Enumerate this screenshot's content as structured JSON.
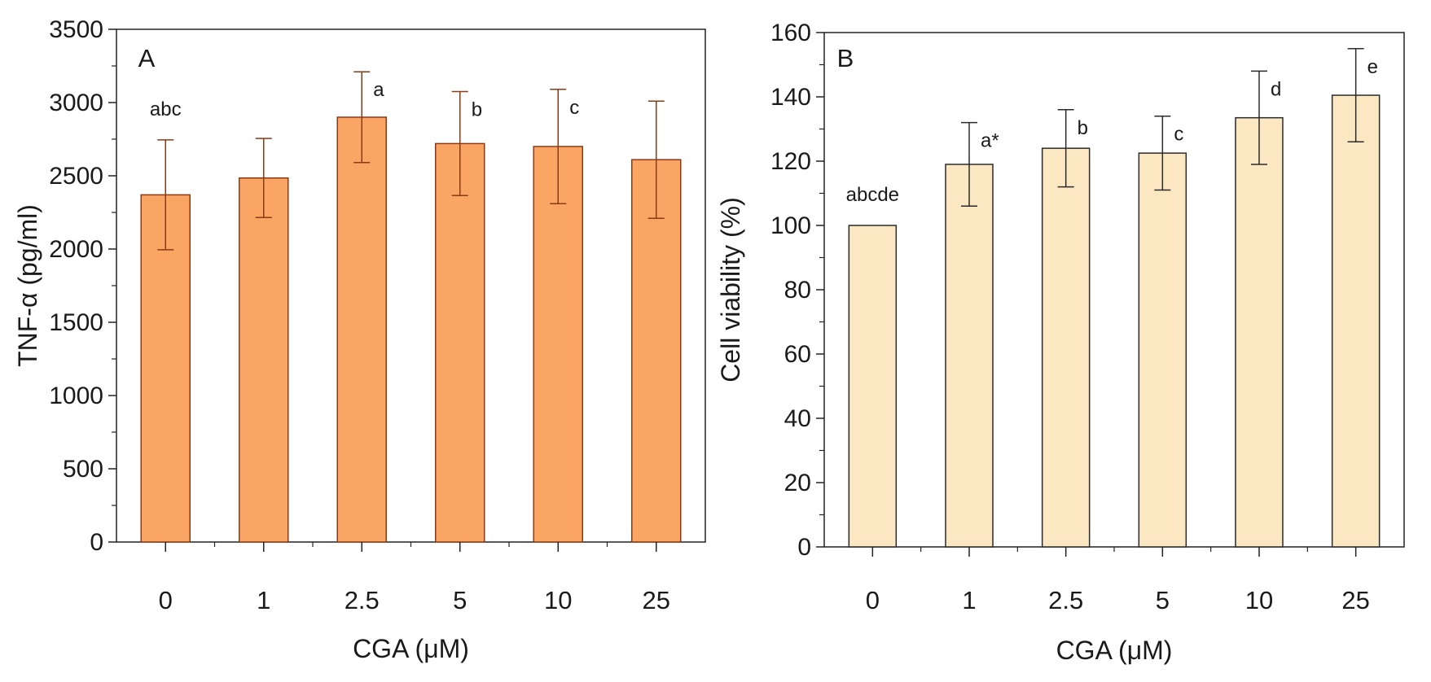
{
  "chart_data": [
    {
      "type": "bar",
      "panel": "A",
      "categories": [
        "0",
        "1",
        "2.5",
        "5",
        "10",
        "25"
      ],
      "values": [
        2370,
        2485,
        2900,
        2720,
        2700,
        2610
      ],
      "errors": [
        375,
        270,
        310,
        355,
        390,
        400
      ],
      "annotations": [
        "abc",
        "",
        "a",
        "b",
        "c",
        ""
      ],
      "xlabel": "CGA (μM)",
      "ylabel": "TNF-α (pg/ml)",
      "ylim": [
        0,
        3500
      ],
      "yticks": [
        0,
        500,
        1000,
        1500,
        2000,
        2500,
        3000,
        3500
      ],
      "bar_color": "#fba564",
      "edge_color": "#8a3a14",
      "error_color": "#8a3a14"
    },
    {
      "type": "bar",
      "panel": "B",
      "categories": [
        "0",
        "1",
        "2.5",
        "5",
        "10",
        "25"
      ],
      "values": [
        100,
        119,
        124,
        122.5,
        133.5,
        140.5
      ],
      "errors": [
        0,
        13,
        12,
        11.5,
        14.5,
        14.5
      ],
      "annotations": [
        "abcde",
        "a*",
        "b",
        "c",
        "d",
        "e"
      ],
      "xlabel": "CGA (μM)",
      "ylabel": "Cell viability (%)",
      "ylim": [
        0,
        160
      ],
      "yticks": [
        0,
        20,
        40,
        60,
        80,
        100,
        120,
        140,
        160
      ],
      "bar_color": "#fbe7c2",
      "edge_color": "#2a2a2a",
      "error_color": "#2a2a2a"
    }
  ]
}
